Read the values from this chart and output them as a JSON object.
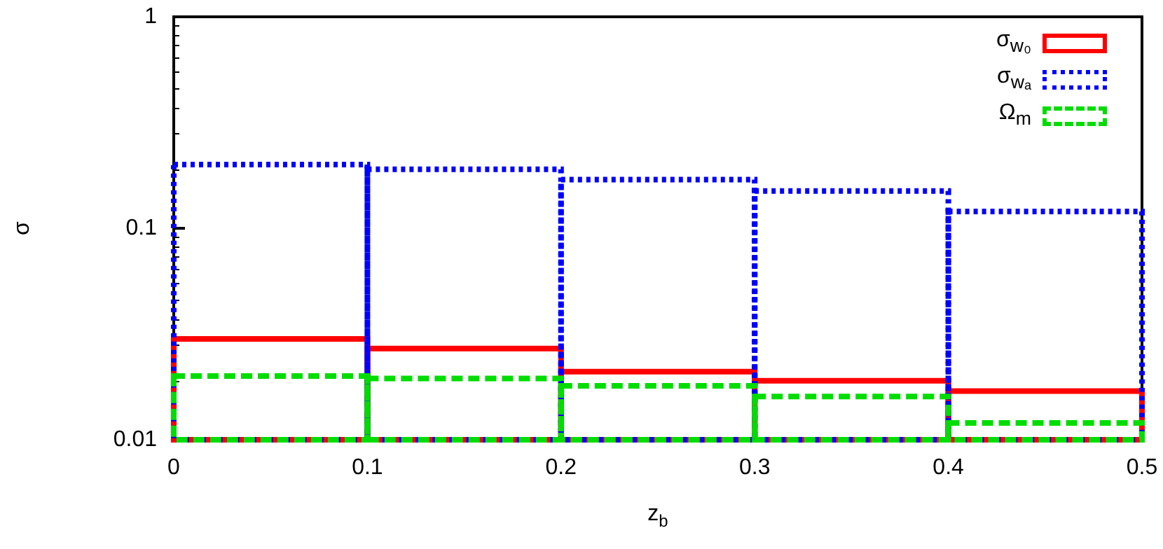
{
  "chart_data": {
    "type": "histogram",
    "xlabel": "z$_{b}$",
    "ylabel": "σ",
    "bins": [
      0,
      0.1,
      0.2,
      0.3,
      0.4,
      0.5
    ],
    "series": [
      {
        "name": "σ$_{w₀}$",
        "color": "#ff0000",
        "line_style": "solid",
        "values": [
          0.03,
          0.027,
          0.021,
          0.019,
          0.017
        ]
      },
      {
        "name": "σ$_{wₐ}$",
        "color": "#0000ff",
        "line_style": "dotted",
        "values": [
          0.2,
          0.19,
          0.17,
          0.15,
          0.12
        ]
      },
      {
        "name": "Ω$_{m}$",
        "color": "#00dd00",
        "line_style": "dashed",
        "values": [
          0.02,
          0.0195,
          0.018,
          0.016,
          0.012
        ]
      }
    ],
    "xlim": [
      0,
      0.5
    ],
    "xticks": [
      0,
      0.1,
      0.2,
      0.3,
      0.4,
      0.5
    ],
    "ylim": [
      0.01,
      1
    ],
    "yticks": [
      0.01,
      0.1,
      1
    ],
    "log": "y",
    "grid": false,
    "legend": "top right"
  }
}
